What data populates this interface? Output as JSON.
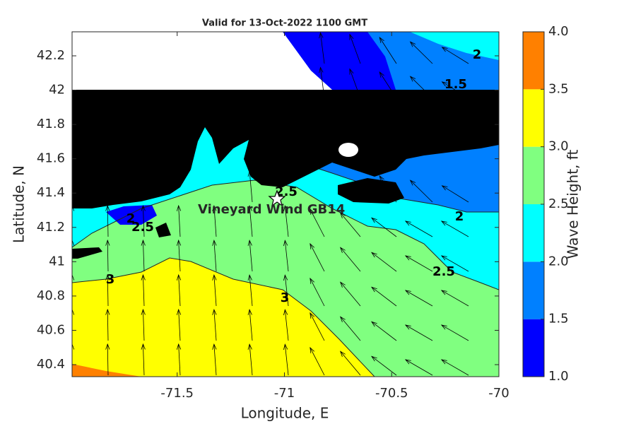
{
  "map": {
    "title": "Valid for 13-Oct-2022 1100 GMT",
    "xlabel": "Longitude, E",
    "ylabel": "Latitude, N",
    "xlim": [
      -71.99,
      -70
    ],
    "ylim": [
      40.33,
      42.34
    ],
    "xticks": [
      -71.5,
      -71,
      -70.5,
      -70
    ],
    "yticks": [
      40.4,
      40.6,
      40.8,
      41,
      41.2,
      41.4,
      41.6,
      41.8,
      42,
      42.2
    ],
    "station": "Vineyard Wind GB14",
    "contour_labels": [
      2,
      2.5,
      3,
      2.5,
      3,
      2,
      2.5,
      2,
      1.5
    ],
    "colorbar": {
      "label": "Wave Height, ft",
      "levels": [
        {
          "value": 1,
          "label": "1.0"
        },
        1.5,
        {
          "value": 2,
          "label": "2.0"
        },
        2.5,
        {
          "value": 3,
          "label": "3.0"
        },
        3.5,
        {
          "value": 4,
          "label": "4.0"
        }
      ],
      "colors": [
        "#0000ff",
        "#0080ff",
        "#00ffff",
        "#80ff80",
        "#ffff00",
        "#ff8000"
      ]
    }
  }
}
